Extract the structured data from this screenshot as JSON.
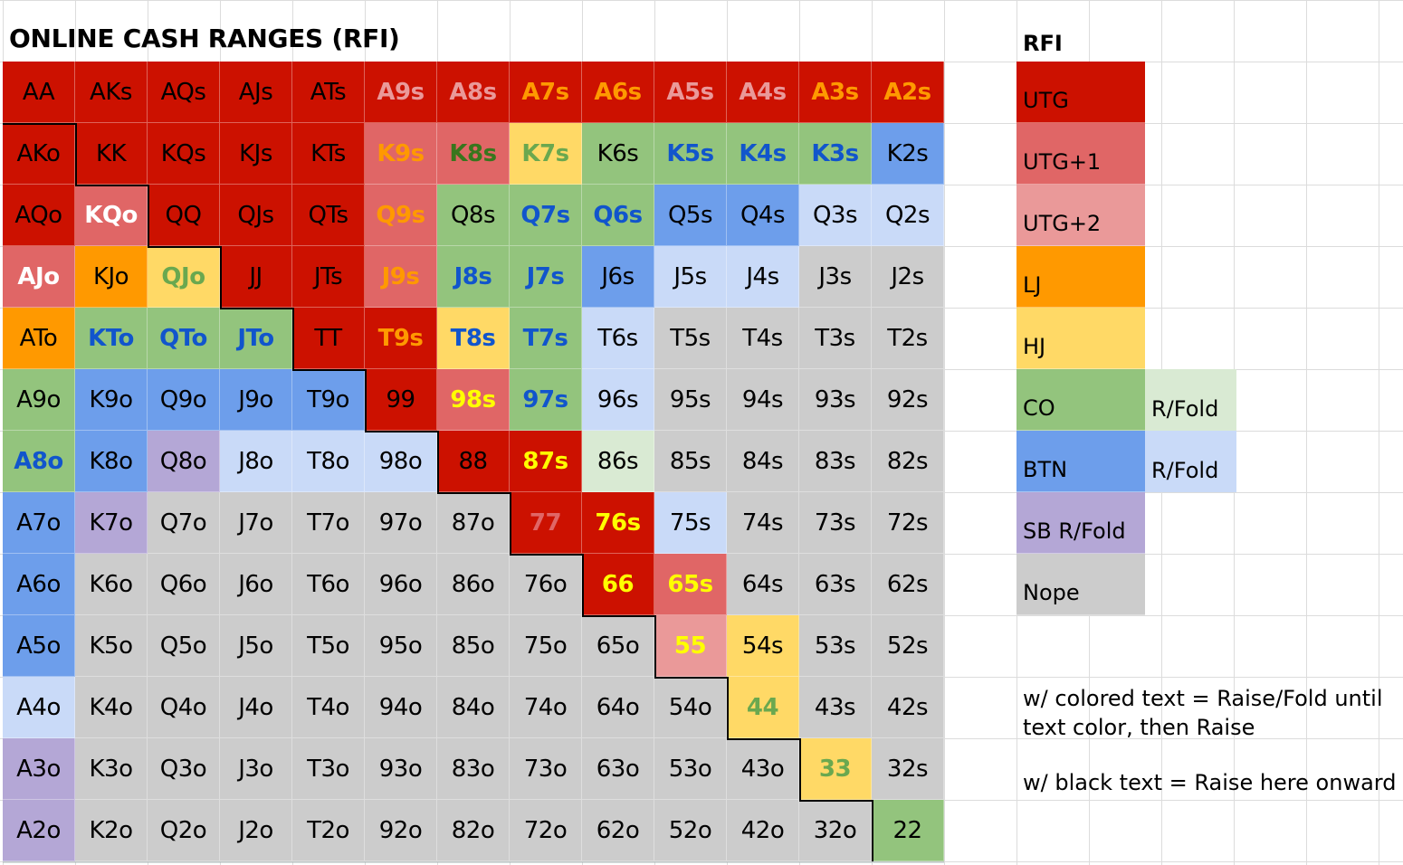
{
  "title": "ONLINE CASH RANGES (RFI)",
  "colors": {
    "UTG": "#cc1100",
    "UTG1": "#e06666",
    "UTG2": "#ea9999",
    "LJ": "#ff9900",
    "HJ": "#ffd966",
    "CO": "#93c47d",
    "BTN": "#6d9eeb",
    "CO_RF": "#d9ead3",
    "BTN_RF": "#c9daf8",
    "SB": "#b4a7d6",
    "NOPE": "#cccccc"
  },
  "text_colors": {
    "black": "#000000",
    "white": "#ffffff",
    "pink": "#ea9999",
    "red": "#e06666",
    "orange": "#ff9900",
    "yellow": "#ffff00",
    "green": "#38761d",
    "lightgreen": "#6aa84f",
    "blue": "#1155cc"
  },
  "grid": [
    [
      [
        "AA",
        "UTG",
        "black",
        0
      ],
      [
        "AKs",
        "UTG",
        "black",
        0
      ],
      [
        "AQs",
        "UTG",
        "black",
        0
      ],
      [
        "AJs",
        "UTG",
        "black",
        0
      ],
      [
        "ATs",
        "UTG",
        "black",
        0
      ],
      [
        "A9s",
        "UTG",
        "pink",
        1
      ],
      [
        "A8s",
        "UTG",
        "pink",
        1
      ],
      [
        "A7s",
        "UTG",
        "orange",
        1
      ],
      [
        "A6s",
        "UTG",
        "orange",
        1
      ],
      [
        "A5s",
        "UTG",
        "pink",
        1
      ],
      [
        "A4s",
        "UTG",
        "pink",
        1
      ],
      [
        "A3s",
        "UTG",
        "orange",
        1
      ],
      [
        "A2s",
        "UTG",
        "orange",
        1
      ]
    ],
    [
      [
        "AKo",
        "UTG",
        "black",
        0
      ],
      [
        "KK",
        "UTG",
        "black",
        0
      ],
      [
        "KQs",
        "UTG",
        "black",
        0
      ],
      [
        "KJs",
        "UTG",
        "black",
        0
      ],
      [
        "KTs",
        "UTG",
        "black",
        0
      ],
      [
        "K9s",
        "UTG1",
        "orange",
        1
      ],
      [
        "K8s",
        "UTG1",
        "green",
        1
      ],
      [
        "K7s",
        "HJ",
        "lightgreen",
        1
      ],
      [
        "K6s",
        "CO",
        "black",
        0
      ],
      [
        "K5s",
        "CO",
        "blue",
        1
      ],
      [
        "K4s",
        "CO",
        "blue",
        1
      ],
      [
        "K3s",
        "CO",
        "blue",
        1
      ],
      [
        "K2s",
        "BTN",
        "black",
        0
      ]
    ],
    [
      [
        "AQo",
        "UTG",
        "black",
        0
      ],
      [
        "KQo",
        "UTG1",
        "white",
        1
      ],
      [
        "QQ",
        "UTG",
        "black",
        0
      ],
      [
        "QJs",
        "UTG",
        "black",
        0
      ],
      [
        "QTs",
        "UTG",
        "black",
        0
      ],
      [
        "Q9s",
        "UTG1",
        "orange",
        1
      ],
      [
        "Q8s",
        "CO",
        "black",
        0
      ],
      [
        "Q7s",
        "CO",
        "blue",
        1
      ],
      [
        "Q6s",
        "CO",
        "blue",
        1
      ],
      [
        "Q5s",
        "BTN",
        "black",
        0
      ],
      [
        "Q4s",
        "BTN",
        "black",
        0
      ],
      [
        "Q3s",
        "BTN_RF",
        "black",
        0
      ],
      [
        "Q2s",
        "BTN_RF",
        "black",
        0
      ]
    ],
    [
      [
        "AJo",
        "UTG1",
        "white",
        1
      ],
      [
        "KJo",
        "LJ",
        "black",
        0
      ],
      [
        "QJo",
        "HJ",
        "lightgreen",
        1
      ],
      [
        "JJ",
        "UTG",
        "black",
        0
      ],
      [
        "JTs",
        "UTG",
        "black",
        0
      ],
      [
        "J9s",
        "UTG1",
        "orange",
        1
      ],
      [
        "J8s",
        "CO",
        "blue",
        1
      ],
      [
        "J7s",
        "CO",
        "blue",
        1
      ],
      [
        "J6s",
        "BTN",
        "black",
        0
      ],
      [
        "J5s",
        "BTN_RF",
        "black",
        0
      ],
      [
        "J4s",
        "BTN_RF",
        "black",
        0
      ],
      [
        "J3s",
        "NOPE",
        "black",
        0
      ],
      [
        "J2s",
        "NOPE",
        "black",
        0
      ]
    ],
    [
      [
        "ATo",
        "LJ",
        "black",
        0
      ],
      [
        "KTo",
        "CO",
        "blue",
        1
      ],
      [
        "QTo",
        "CO",
        "blue",
        1
      ],
      [
        "JTo",
        "CO",
        "blue",
        1
      ],
      [
        "TT",
        "UTG",
        "black",
        0
      ],
      [
        "T9s",
        "UTG",
        "orange",
        1
      ],
      [
        "T8s",
        "HJ",
        "blue",
        1
      ],
      [
        "T7s",
        "CO",
        "blue",
        1
      ],
      [
        "T6s",
        "BTN_RF",
        "black",
        0
      ],
      [
        "T5s",
        "NOPE",
        "black",
        0
      ],
      [
        "T4s",
        "NOPE",
        "black",
        0
      ],
      [
        "T3s",
        "NOPE",
        "black",
        0
      ],
      [
        "T2s",
        "NOPE",
        "black",
        0
      ]
    ],
    [
      [
        "A9o",
        "CO",
        "black",
        0
      ],
      [
        "K9o",
        "BTN",
        "black",
        0
      ],
      [
        "Q9o",
        "BTN",
        "black",
        0
      ],
      [
        "J9o",
        "BTN",
        "black",
        0
      ],
      [
        "T9o",
        "BTN",
        "black",
        0
      ],
      [
        "99",
        "UTG",
        "black",
        0
      ],
      [
        "98s",
        "UTG1",
        "yellow",
        1
      ],
      [
        "97s",
        "CO",
        "blue",
        1
      ],
      [
        "96s",
        "BTN_RF",
        "black",
        0
      ],
      [
        "95s",
        "NOPE",
        "black",
        0
      ],
      [
        "94s",
        "NOPE",
        "black",
        0
      ],
      [
        "93s",
        "NOPE",
        "black",
        0
      ],
      [
        "92s",
        "NOPE",
        "black",
        0
      ]
    ],
    [
      [
        "A8o",
        "CO",
        "blue",
        1
      ],
      [
        "K8o",
        "BTN",
        "black",
        0
      ],
      [
        "Q8o",
        "SB",
        "black",
        0
      ],
      [
        "J8o",
        "BTN_RF",
        "black",
        0
      ],
      [
        "T8o",
        "BTN_RF",
        "black",
        0
      ],
      [
        "98o",
        "BTN_RF",
        "black",
        0
      ],
      [
        "88",
        "UTG",
        "black",
        0
      ],
      [
        "87s",
        "UTG",
        "yellow",
        1
      ],
      [
        "86s",
        "CO_RF",
        "black",
        0
      ],
      [
        "85s",
        "NOPE",
        "black",
        0
      ],
      [
        "84s",
        "NOPE",
        "black",
        0
      ],
      [
        "83s",
        "NOPE",
        "black",
        0
      ],
      [
        "82s",
        "NOPE",
        "black",
        0
      ]
    ],
    [
      [
        "A7o",
        "BTN",
        "black",
        0
      ],
      [
        "K7o",
        "SB",
        "black",
        0
      ],
      [
        "Q7o",
        "NOPE",
        "black",
        0
      ],
      [
        "J7o",
        "NOPE",
        "black",
        0
      ],
      [
        "T7o",
        "NOPE",
        "black",
        0
      ],
      [
        "97o",
        "NOPE",
        "black",
        0
      ],
      [
        "87o",
        "NOPE",
        "black",
        0
      ],
      [
        "77",
        "UTG",
        "red",
        1
      ],
      [
        "76s",
        "UTG",
        "yellow",
        1
      ],
      [
        "75s",
        "BTN_RF",
        "black",
        0
      ],
      [
        "74s",
        "NOPE",
        "black",
        0
      ],
      [
        "73s",
        "NOPE",
        "black",
        0
      ],
      [
        "72s",
        "NOPE",
        "black",
        0
      ]
    ],
    [
      [
        "A6o",
        "BTN",
        "black",
        0
      ],
      [
        "K6o",
        "NOPE",
        "black",
        0
      ],
      [
        "Q6o",
        "NOPE",
        "black",
        0
      ],
      [
        "J6o",
        "NOPE",
        "black",
        0
      ],
      [
        "T6o",
        "NOPE",
        "black",
        0
      ],
      [
        "96o",
        "NOPE",
        "black",
        0
      ],
      [
        "86o",
        "NOPE",
        "black",
        0
      ],
      [
        "76o",
        "NOPE",
        "black",
        0
      ],
      [
        "66",
        "UTG",
        "yellow",
        1
      ],
      [
        "65s",
        "UTG1",
        "yellow",
        1
      ],
      [
        "64s",
        "NOPE",
        "black",
        0
      ],
      [
        "63s",
        "NOPE",
        "black",
        0
      ],
      [
        "62s",
        "NOPE",
        "black",
        0
      ]
    ],
    [
      [
        "A5o",
        "BTN",
        "black",
        0
      ],
      [
        "K5o",
        "NOPE",
        "black",
        0
      ],
      [
        "Q5o",
        "NOPE",
        "black",
        0
      ],
      [
        "J5o",
        "NOPE",
        "black",
        0
      ],
      [
        "T5o",
        "NOPE",
        "black",
        0
      ],
      [
        "95o",
        "NOPE",
        "black",
        0
      ],
      [
        "85o",
        "NOPE",
        "black",
        0
      ],
      [
        "75o",
        "NOPE",
        "black",
        0
      ],
      [
        "65o",
        "NOPE",
        "black",
        0
      ],
      [
        "55",
        "UTG2",
        "yellow",
        1
      ],
      [
        "54s",
        "HJ",
        "black",
        0
      ],
      [
        "53s",
        "NOPE",
        "black",
        0
      ],
      [
        "52s",
        "NOPE",
        "black",
        0
      ]
    ],
    [
      [
        "A4o",
        "BTN_RF",
        "black",
        0
      ],
      [
        "K4o",
        "NOPE",
        "black",
        0
      ],
      [
        "Q4o",
        "NOPE",
        "black",
        0
      ],
      [
        "J4o",
        "NOPE",
        "black",
        0
      ],
      [
        "T4o",
        "NOPE",
        "black",
        0
      ],
      [
        "94o",
        "NOPE",
        "black",
        0
      ],
      [
        "84o",
        "NOPE",
        "black",
        0
      ],
      [
        "74o",
        "NOPE",
        "black",
        0
      ],
      [
        "64o",
        "NOPE",
        "black",
        0
      ],
      [
        "54o",
        "NOPE",
        "black",
        0
      ],
      [
        "44",
        "HJ",
        "lightgreen",
        1
      ],
      [
        "43s",
        "NOPE",
        "black",
        0
      ],
      [
        "42s",
        "NOPE",
        "black",
        0
      ]
    ],
    [
      [
        "A3o",
        "SB",
        "black",
        0
      ],
      [
        "K3o",
        "NOPE",
        "black",
        0
      ],
      [
        "Q3o",
        "NOPE",
        "black",
        0
      ],
      [
        "J3o",
        "NOPE",
        "black",
        0
      ],
      [
        "T3o",
        "NOPE",
        "black",
        0
      ],
      [
        "93o",
        "NOPE",
        "black",
        0
      ],
      [
        "83o",
        "NOPE",
        "black",
        0
      ],
      [
        "73o",
        "NOPE",
        "black",
        0
      ],
      [
        "63o",
        "NOPE",
        "black",
        0
      ],
      [
        "53o",
        "NOPE",
        "black",
        0
      ],
      [
        "43o",
        "NOPE",
        "black",
        0
      ],
      [
        "33",
        "HJ",
        "lightgreen",
        1
      ],
      [
        "32s",
        "NOPE",
        "black",
        0
      ]
    ],
    [
      [
        "A2o",
        "SB",
        "black",
        0
      ],
      [
        "K2o",
        "NOPE",
        "black",
        0
      ],
      [
        "Q2o",
        "NOPE",
        "black",
        0
      ],
      [
        "J2o",
        "NOPE",
        "black",
        0
      ],
      [
        "T2o",
        "NOPE",
        "black",
        0
      ],
      [
        "92o",
        "NOPE",
        "black",
        0
      ],
      [
        "82o",
        "NOPE",
        "black",
        0
      ],
      [
        "72o",
        "NOPE",
        "black",
        0
      ],
      [
        "62o",
        "NOPE",
        "black",
        0
      ],
      [
        "52o",
        "NOPE",
        "black",
        0
      ],
      [
        "42o",
        "NOPE",
        "black",
        0
      ],
      [
        "32o",
        "NOPE",
        "black",
        0
      ],
      [
        "22",
        "CO",
        "black",
        0
      ]
    ]
  ],
  "legend": {
    "title": "RFI",
    "items": [
      {
        "label": "UTG",
        "color": "UTG",
        "note": ""
      },
      {
        "label": "UTG+1",
        "color": "UTG1",
        "note": ""
      },
      {
        "label": "UTG+2",
        "color": "UTG2",
        "note": ""
      },
      {
        "label": "LJ",
        "color": "LJ",
        "note": ""
      },
      {
        "label": "HJ",
        "color": "HJ",
        "note": ""
      },
      {
        "label": "CO",
        "color": "CO",
        "note": "R/Fold",
        "note_color": "CO_RF"
      },
      {
        "label": "BTN",
        "color": "BTN",
        "note": "R/Fold",
        "note_color": "BTN_RF"
      },
      {
        "label": "SB R/Fold",
        "color": "SB",
        "note": ""
      },
      {
        "label": "Nope",
        "color": "NOPE",
        "note": ""
      }
    ]
  },
  "notes": {
    "colored_line1": "w/ colored text = Raise/Fold until",
    "colored_line2": "text color, then Raise",
    "black": "w/ black text = Raise here onward"
  }
}
